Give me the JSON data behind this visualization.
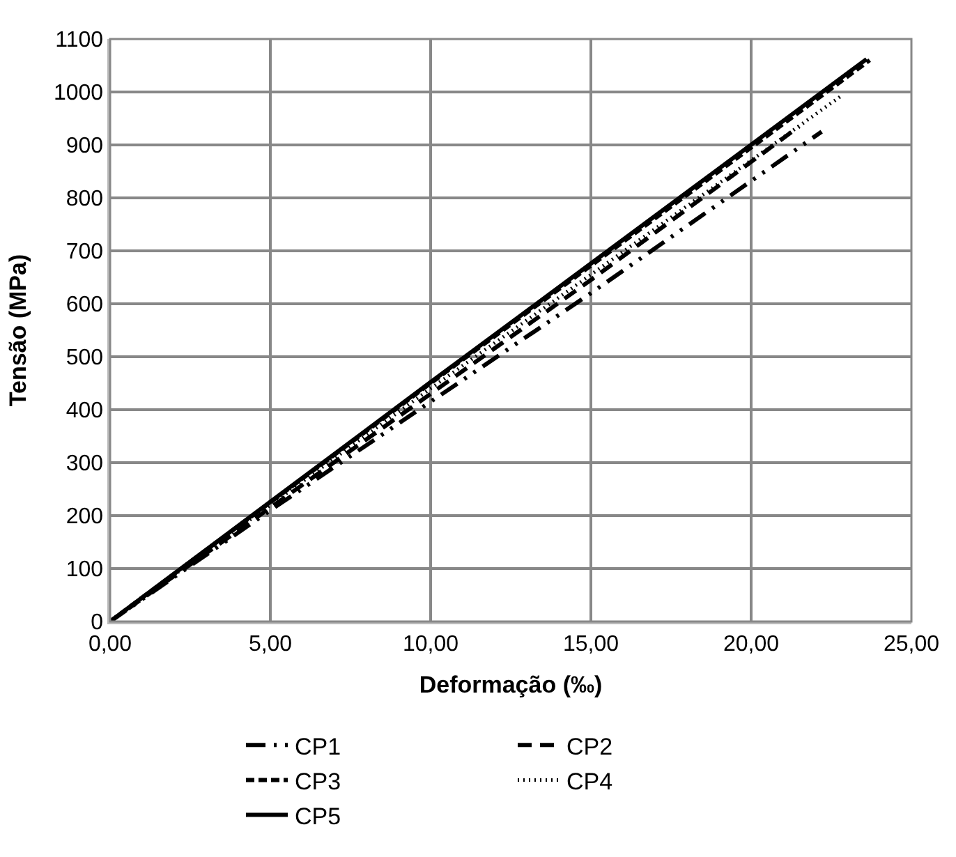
{
  "chart_data": {
    "type": "line",
    "xlabel": "Deformação (‰)",
    "ylabel": "Tensão (MPa)",
    "xlim": [
      0,
      25
    ],
    "ylim": [
      0,
      1100
    ],
    "xticks": [
      {
        "value": 0,
        "label": "0,00"
      },
      {
        "value": 5,
        "label": "5,00"
      },
      {
        "value": 10,
        "label": "10,00"
      },
      {
        "value": 15,
        "label": "15,00"
      },
      {
        "value": 20,
        "label": "20,00"
      },
      {
        "value": 25,
        "label": "25,00"
      }
    ],
    "yticks": [
      0,
      100,
      200,
      300,
      400,
      500,
      600,
      700,
      800,
      900,
      1000,
      1100
    ],
    "grid": true,
    "legend": "bottom",
    "marker": "none",
    "series": [
      {
        "name": "CP1",
        "color": "#000000",
        "line_style": "dashed",
        "x": [
          0,
          5,
          10,
          15,
          22.2
        ],
        "values": [
          0,
          210,
          415,
          620,
          925
        ]
      },
      {
        "name": "CP2",
        "color": "#000000",
        "line_style": "dashed",
        "x": [
          0,
          5,
          10,
          15,
          21.5
        ],
        "values": [
          0,
          215,
          430,
          645,
          935
        ]
      },
      {
        "name": "CP3",
        "color": "#000000",
        "line_style": "dashed",
        "x": [
          0,
          5,
          10,
          15,
          23.7
        ],
        "values": [
          0,
          225,
          450,
          672,
          1060
        ]
      },
      {
        "name": "CP4",
        "color": "#000000",
        "line_style": "dotted",
        "x": [
          0,
          5,
          10,
          15,
          22.8
        ],
        "values": [
          0,
          220,
          440,
          655,
          992
        ]
      },
      {
        "name": "CP5",
        "color": "#000000",
        "line_style": "solid",
        "x": [
          0,
          5,
          10,
          15,
          23.6
        ],
        "values": [
          0,
          226,
          452,
          676,
          1062
        ]
      }
    ]
  }
}
